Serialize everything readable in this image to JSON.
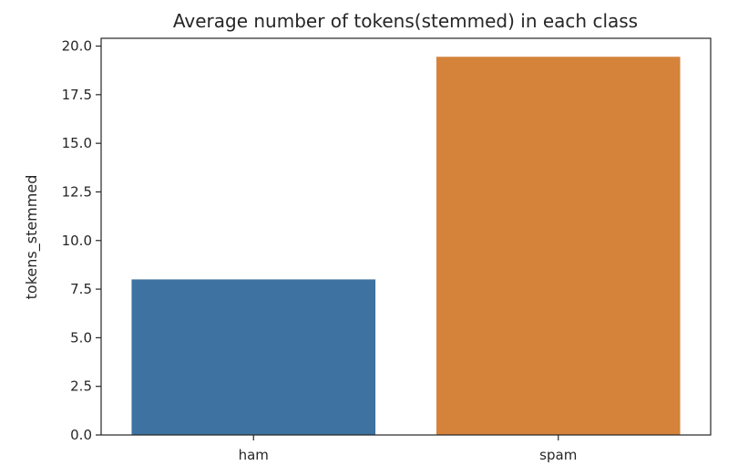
{
  "chart_data": {
    "type": "bar",
    "title": "Average number of tokens(stemmed) in each class",
    "xlabel": "",
    "ylabel": "tokens_stemmed",
    "categories": [
      "ham",
      "spam"
    ],
    "values": [
      8.0,
      19.45
    ],
    "ylim": [
      0,
      20.4
    ],
    "yticks": [
      0.0,
      2.5,
      5.0,
      7.5,
      10.0,
      12.5,
      15.0,
      17.5,
      20.0
    ],
    "ytick_labels": [
      "0.0",
      "2.5",
      "5.0",
      "7.5",
      "10.0",
      "12.5",
      "15.0",
      "17.5",
      "20.0"
    ],
    "colors": [
      "#3d72a1",
      "#d5833b"
    ],
    "grid": false,
    "legend": "none"
  }
}
